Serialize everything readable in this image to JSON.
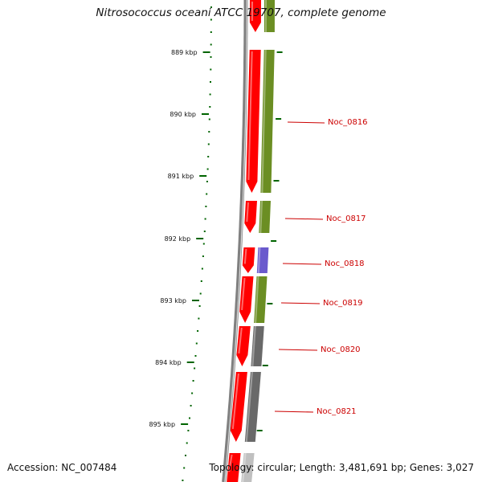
{
  "title": "Nitrosococcus oceani ATCC 19707, complete genome",
  "accession_text": "Accession: NC_007484",
  "summary_text": "Topology: circular; Length: 3,481,691 bp; Genes: 3,027",
  "colors": {
    "background": "#ffffff",
    "cds_forward": "#ff0000",
    "cog_green": "#6b8e23",
    "cog_purple": "#6a5acd",
    "cog_gray": "#696969",
    "backbone": "#808080",
    "tick": "#006400",
    "gene_label": "#cc0000"
  },
  "ticks": [
    {
      "label": "889 kbp"
    },
    {
      "label": "890 kbp"
    },
    {
      "label": "891 kbp"
    },
    {
      "label": "892 kbp"
    },
    {
      "label": "893 kbp"
    },
    {
      "label": "894 kbp"
    },
    {
      "label": "895 kbp"
    }
  ],
  "genes": [
    {
      "label": "",
      "cog_color": "#6b8e23"
    },
    {
      "label": "",
      "cog_color": "#6b8e23"
    },
    {
      "label": "Noc_0817",
      "cog_color": "#6b8e23"
    },
    {
      "label": "Noc_0818",
      "cog_color": "#6a5acd"
    },
    {
      "label": "Noc_0819",
      "cog_color": "#6b8e23"
    },
    {
      "label": "Noc_0820",
      "cog_color": "#696969"
    },
    {
      "label": "Noc_0821",
      "cog_color": "#696969"
    },
    {
      "label": "",
      "cog_color": "#c0c0c0"
    }
  ],
  "extra_labels": [
    {
      "label": "Noc_0816"
    }
  ]
}
